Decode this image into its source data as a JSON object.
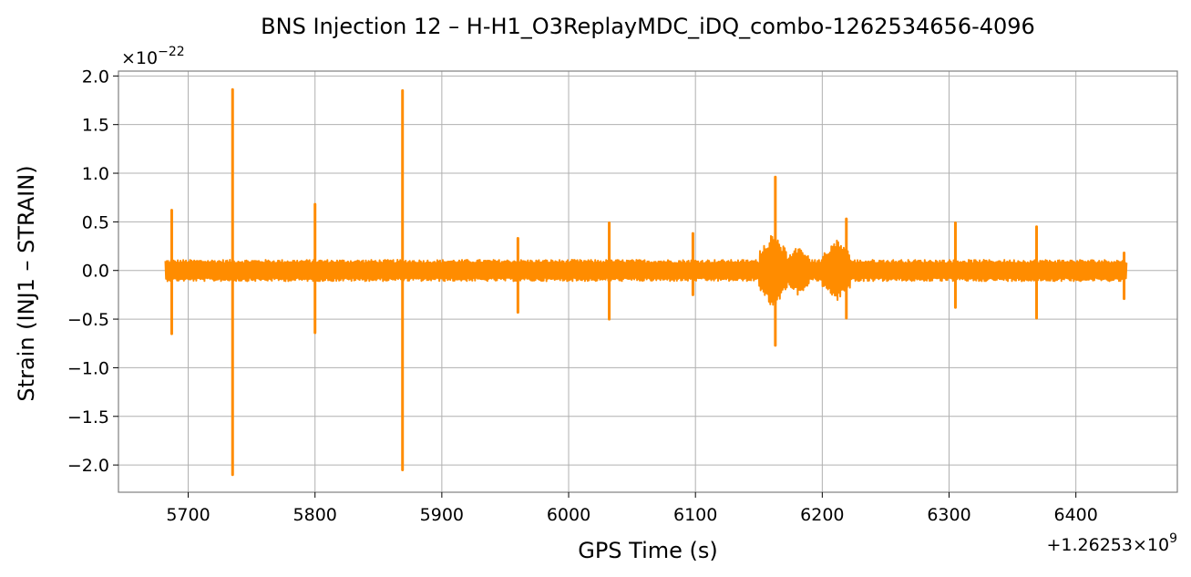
{
  "chart_data": {
    "type": "line",
    "title": "BNS Injection 12 – H-H1_O3ReplayMDC_iDQ_combo-1262534656-4096",
    "xlabel": "GPS Time (s)",
    "ylabel": "Strain (INJ1 – STRAIN)",
    "x_offset_text": "+1.26253×10",
    "x_offset_exp": "9",
    "y_scale_text": "×10",
    "y_scale_exp": "−22",
    "xlim": [
      5645,
      6480
    ],
    "ylim": [
      -2.28,
      2.05
    ],
    "x_ticks": [
      5700,
      5800,
      5900,
      6000,
      6100,
      6200,
      6300,
      6400
    ],
    "x_tick_labels": [
      "5700",
      "5800",
      "5900",
      "6000",
      "6100",
      "6200",
      "6300",
      "6400"
    ],
    "y_ticks": [
      2.0,
      1.5,
      1.0,
      0.5,
      0.0,
      -0.5,
      -1.0,
      -1.5,
      -2.0
    ],
    "y_tick_labels": [
      "2.0",
      "1.5",
      "1.0",
      "0.5",
      "0.0",
      "−0.5",
      "−1.0",
      "−1.5",
      "−2.0"
    ],
    "grid": true,
    "series": [
      {
        "color": "#ff8c00",
        "x_range": [
          5682,
          6440
        ],
        "baseline_amplitude": 0.1,
        "spikes": [
          {
            "x": 5687,
            "ymax": 0.62,
            "ymin": -0.65
          },
          {
            "x": 5735,
            "ymax": 1.86,
            "ymin": -2.1
          },
          {
            "x": 5800,
            "ymax": 0.68,
            "ymin": -0.64
          },
          {
            "x": 5869,
            "ymax": 1.85,
            "ymin": -2.05
          },
          {
            "x": 5960,
            "ymax": 0.33,
            "ymin": -0.43
          },
          {
            "x": 6032,
            "ymax": 0.49,
            "ymin": -0.5
          },
          {
            "x": 6098,
            "ymax": 0.38,
            "ymin": -0.25
          },
          {
            "x": 6163,
            "ymax": 0.96,
            "ymin": -0.77
          },
          {
            "x": 6219,
            "ymax": 0.53,
            "ymin": -0.49
          },
          {
            "x": 6305,
            "ymax": 0.49,
            "ymin": -0.38
          },
          {
            "x": 6369,
            "ymax": 0.45,
            "ymin": -0.49
          },
          {
            "x": 6438,
            "ymax": 0.18,
            "ymin": -0.29
          }
        ],
        "bursts": [
          {
            "x_start": 6150,
            "x_end": 6172,
            "amplitude": 0.38
          },
          {
            "x_start": 6172,
            "x_end": 6190,
            "amplitude": 0.26
          },
          {
            "x_start": 6200,
            "x_end": 6222,
            "amplitude": 0.32
          }
        ]
      }
    ]
  }
}
